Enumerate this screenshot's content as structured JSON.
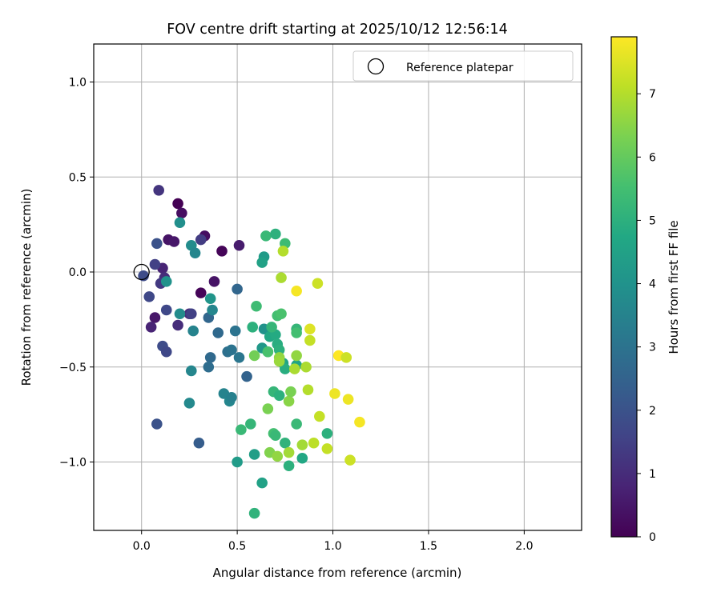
{
  "chart_data": {
    "type": "scatter",
    "title": "FOV centre drift starting at 2025/10/12 12:56:14",
    "xlabel": "Angular distance from reference (arcmin)",
    "ylabel": "Rotation from reference (arcmin)",
    "xlim": [
      -0.25,
      2.3
    ],
    "ylim": [
      -1.36,
      1.2
    ],
    "xticks": [
      0.0,
      0.5,
      1.0,
      1.5,
      2.0
    ],
    "xtick_labels": [
      "0.0",
      "0.5",
      "1.0",
      "1.5",
      "2.0"
    ],
    "yticks": [
      1.0,
      0.5,
      0.0,
      -0.5,
      -1.0
    ],
    "ytick_labels": [
      "1.0",
      "0.5",
      "0.0",
      "−0.5",
      "−1.0"
    ],
    "grid": true,
    "legend": {
      "location": "top-right",
      "entries": [
        "Reference platepar"
      ]
    },
    "reference_point": {
      "x": 0.0,
      "y": 0.0,
      "label": "Reference platepar"
    },
    "colorbar": {
      "label": "Hours from first FF file",
      "colormap": "viridis",
      "range": [
        0,
        7.9
      ],
      "ticks": [
        0,
        1,
        2,
        3,
        4,
        5,
        6,
        7
      ],
      "tick_labels": [
        "0",
        "1",
        "2",
        "3",
        "4",
        "5",
        "6",
        "7"
      ]
    },
    "points": [
      {
        "x": 0.19,
        "y": 0.36,
        "t": 0.0
      },
      {
        "x": 0.21,
        "y": 0.31,
        "t": 0.3
      },
      {
        "x": 0.14,
        "y": 0.17,
        "t": 0.4
      },
      {
        "x": 0.17,
        "y": 0.16,
        "t": 0.5
      },
      {
        "x": 0.33,
        "y": 0.19,
        "t": 0.3
      },
      {
        "x": 0.42,
        "y": 0.11,
        "t": 0.1
      },
      {
        "x": 0.51,
        "y": 0.14,
        "t": 0.6
      },
      {
        "x": 0.31,
        "y": -0.11,
        "t": 0.1
      },
      {
        "x": 0.38,
        "y": -0.05,
        "t": 0.4
      },
      {
        "x": 0.11,
        "y": 0.02,
        "t": 0.8
      },
      {
        "x": 0.12,
        "y": -0.03,
        "t": 1.0
      },
      {
        "x": 0.07,
        "y": -0.24,
        "t": 0.5
      },
      {
        "x": 0.05,
        "y": -0.29,
        "t": 0.8
      },
      {
        "x": 0.19,
        "y": -0.28,
        "t": 1.0
      },
      {
        "x": 0.25,
        "y": -0.22,
        "t": 0.9
      },
      {
        "x": 0.09,
        "y": 0.43,
        "t": 1.2
      },
      {
        "x": 0.08,
        "y": 0.15,
        "t": 2.0
      },
      {
        "x": 0.07,
        "y": 0.04,
        "t": 1.5
      },
      {
        "x": 0.1,
        "y": -0.06,
        "t": 1.3
      },
      {
        "x": 0.01,
        "y": -0.02,
        "t": 1.8
      },
      {
        "x": 0.04,
        "y": -0.13,
        "t": 1.7
      },
      {
        "x": 0.13,
        "y": -0.2,
        "t": 1.7
      },
      {
        "x": 0.11,
        "y": -0.39,
        "t": 1.8
      },
      {
        "x": 0.13,
        "y": -0.42,
        "t": 1.7
      },
      {
        "x": 0.26,
        "y": -0.22,
        "t": 1.5
      },
      {
        "x": 0.31,
        "y": 0.17,
        "t": 1.4
      },
      {
        "x": 0.08,
        "y": -0.8,
        "t": 2.0
      },
      {
        "x": 0.3,
        "y": -0.9,
        "t": 2.3
      },
      {
        "x": 0.35,
        "y": -0.24,
        "t": 2.6
      },
      {
        "x": 0.36,
        "y": -0.45,
        "t": 2.7
      },
      {
        "x": 0.35,
        "y": -0.5,
        "t": 2.8
      },
      {
        "x": 0.4,
        "y": -0.32,
        "t": 2.7
      },
      {
        "x": 0.45,
        "y": -0.42,
        "t": 2.9
      },
      {
        "x": 0.47,
        "y": -0.41,
        "t": 3.0
      },
      {
        "x": 0.49,
        "y": -0.31,
        "t": 3.0
      },
      {
        "x": 0.5,
        "y": -0.09,
        "t": 2.6
      },
      {
        "x": 0.55,
        "y": -0.55,
        "t": 2.5
      },
      {
        "x": 0.51,
        "y": -0.45,
        "t": 3.1
      },
      {
        "x": 0.43,
        "y": -0.64,
        "t": 3.5
      },
      {
        "x": 0.46,
        "y": -0.68,
        "t": 3.6
      },
      {
        "x": 0.47,
        "y": -0.66,
        "t": 3.4
      },
      {
        "x": 0.27,
        "y": -0.31,
        "t": 3.5
      },
      {
        "x": 0.37,
        "y": -0.2,
        "t": 3.6
      },
      {
        "x": 0.36,
        "y": -0.14,
        "t": 4.1
      },
      {
        "x": 0.2,
        "y": -0.22,
        "t": 3.8
      },
      {
        "x": 0.13,
        "y": -0.05,
        "t": 4.0
      },
      {
        "x": 0.2,
        "y": 0.26,
        "t": 3.9
      },
      {
        "x": 0.26,
        "y": 0.14,
        "t": 3.8
      },
      {
        "x": 0.28,
        "y": 0.1,
        "t": 3.6
      },
      {
        "x": 0.26,
        "y": -0.52,
        "t": 3.6
      },
      {
        "x": 0.25,
        "y": -0.69,
        "t": 3.7
      },
      {
        "x": 0.5,
        "y": -1.0,
        "t": 4.3
      },
      {
        "x": 0.59,
        "y": -0.96,
        "t": 4.4
      },
      {
        "x": 0.63,
        "y": -1.11,
        "t": 4.5
      },
      {
        "x": 0.59,
        "y": -1.27,
        "t": 5.1
      },
      {
        "x": 0.57,
        "y": -0.8,
        "t": 5.2
      },
      {
        "x": 0.52,
        "y": -0.83,
        "t": 5.3
      },
      {
        "x": 0.64,
        "y": 0.08,
        "t": 4.3
      },
      {
        "x": 0.63,
        "y": 0.05,
        "t": 4.5
      },
      {
        "x": 0.64,
        "y": -0.3,
        "t": 4.0
      },
      {
        "x": 0.63,
        "y": -0.4,
        "t": 4.2
      },
      {
        "x": 0.66,
        "y": -0.42,
        "t": 4.5
      },
      {
        "x": 0.67,
        "y": -0.34,
        "t": 4.7
      },
      {
        "x": 0.7,
        "y": -0.33,
        "t": 4.8
      },
      {
        "x": 0.71,
        "y": -0.38,
        "t": 4.9
      },
      {
        "x": 0.72,
        "y": -0.41,
        "t": 5.0
      },
      {
        "x": 0.74,
        "y": -0.48,
        "t": 4.6
      },
      {
        "x": 0.75,
        "y": -0.51,
        "t": 4.9
      },
      {
        "x": 0.81,
        "y": -0.49,
        "t": 4.6
      },
      {
        "x": 0.68,
        "y": -0.29,
        "t": 5.2
      },
      {
        "x": 0.58,
        "y": -0.29,
        "t": 5.0
      },
      {
        "x": 0.6,
        "y": -0.18,
        "t": 5.4
      },
      {
        "x": 0.71,
        "y": -0.23,
        "t": 5.5
      },
      {
        "x": 0.73,
        "y": -0.22,
        "t": 5.6
      },
      {
        "x": 0.81,
        "y": -0.3,
        "t": 5.2
      },
      {
        "x": 0.81,
        "y": -0.32,
        "t": 5.5
      },
      {
        "x": 0.65,
        "y": 0.19,
        "t": 5.3
      },
      {
        "x": 0.7,
        "y": 0.2,
        "t": 5.0
      },
      {
        "x": 0.75,
        "y": 0.15,
        "t": 5.4
      },
      {
        "x": 0.69,
        "y": -0.63,
        "t": 5.2
      },
      {
        "x": 0.72,
        "y": -0.65,
        "t": 5.0
      },
      {
        "x": 0.69,
        "y": -0.85,
        "t": 5.5
      },
      {
        "x": 0.7,
        "y": -0.86,
        "t": 5.3
      },
      {
        "x": 0.75,
        "y": -0.9,
        "t": 5.1
      },
      {
        "x": 0.77,
        "y": -1.02,
        "t": 5.0
      },
      {
        "x": 0.81,
        "y": -0.8,
        "t": 5.3
      },
      {
        "x": 0.84,
        "y": -0.98,
        "t": 4.7
      },
      {
        "x": 0.97,
        "y": -0.85,
        "t": 5.0
      },
      {
        "x": 0.66,
        "y": -0.42,
        "t": 5.6
      },
      {
        "x": 0.59,
        "y": -0.44,
        "t": 6.2
      },
      {
        "x": 0.66,
        "y": -0.72,
        "t": 6.3
      },
      {
        "x": 0.67,
        "y": -0.95,
        "t": 6.4
      },
      {
        "x": 0.71,
        "y": -0.97,
        "t": 6.6
      },
      {
        "x": 0.77,
        "y": -0.95,
        "t": 6.8
      },
      {
        "x": 0.77,
        "y": -0.68,
        "t": 6.5
      },
      {
        "x": 0.78,
        "y": -0.63,
        "t": 6.3
      },
      {
        "x": 0.72,
        "y": -0.45,
        "t": 6.6
      },
      {
        "x": 0.72,
        "y": -0.47,
        "t": 6.7
      },
      {
        "x": 0.8,
        "y": -0.51,
        "t": 6.9
      },
      {
        "x": 0.81,
        "y": -0.44,
        "t": 6.6
      },
      {
        "x": 0.86,
        "y": -0.5,
        "t": 6.9
      },
      {
        "x": 0.87,
        "y": -0.62,
        "t": 7.0
      },
      {
        "x": 0.84,
        "y": -0.91,
        "t": 6.8
      },
      {
        "x": 0.9,
        "y": -0.9,
        "t": 7.1
      },
      {
        "x": 0.93,
        "y": -0.76,
        "t": 7.2
      },
      {
        "x": 0.97,
        "y": -0.93,
        "t": 7.2
      },
      {
        "x": 0.73,
        "y": -0.03,
        "t": 6.9
      },
      {
        "x": 0.74,
        "y": 0.11,
        "t": 7.0
      },
      {
        "x": 0.81,
        "y": -0.1,
        "t": 7.8
      },
      {
        "x": 0.92,
        "y": -0.06,
        "t": 7.3
      },
      {
        "x": 0.88,
        "y": -0.3,
        "t": 7.5
      },
      {
        "x": 0.88,
        "y": -0.36,
        "t": 7.2
      },
      {
        "x": 1.01,
        "y": -0.64,
        "t": 7.7
      },
      {
        "x": 1.03,
        "y": -0.44,
        "t": 7.9
      },
      {
        "x": 1.07,
        "y": -0.45,
        "t": 7.3
      },
      {
        "x": 1.08,
        "y": -0.67,
        "t": 7.7
      },
      {
        "x": 1.14,
        "y": -0.79,
        "t": 7.8
      },
      {
        "x": 1.09,
        "y": -0.99,
        "t": 7.3
      }
    ]
  }
}
